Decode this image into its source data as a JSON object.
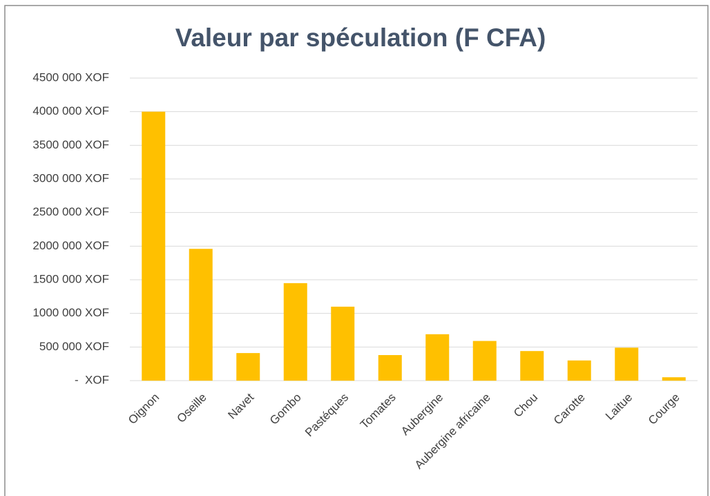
{
  "chart_data": {
    "type": "bar",
    "title": "Valeur par spéculation (F CFA)",
    "categories": [
      "Oignon",
      "Oseille",
      "Navet",
      "Gombo",
      "Pastéques",
      "Tomates",
      "Aubergine",
      "Aubergine africaine",
      "Chou",
      "Carotte",
      "Laitue",
      "Courge"
    ],
    "values": [
      4000000,
      1960000,
      410000,
      1450000,
      1100000,
      380000,
      690000,
      590000,
      440000,
      300000,
      490000,
      50000
    ],
    "color": "#ffc000",
    "ylim": [
      0,
      4500000
    ],
    "yticks": [
      {
        "value": 0,
        "label": "-  XOF"
      },
      {
        "value": 500000,
        "label": "500 000 XOF"
      },
      {
        "value": 1000000,
        "label": "1000 000 XOF"
      },
      {
        "value": 1500000,
        "label": "1500 000 XOF"
      },
      {
        "value": 2000000,
        "label": "2000 000 XOF"
      },
      {
        "value": 2500000,
        "label": "2500 000 XOF"
      },
      {
        "value": 3000000,
        "label": "3000 000 XOF"
      },
      {
        "value": 3500000,
        "label": "3500 000 XOF"
      },
      {
        "value": 4000000,
        "label": "4000 000 XOF"
      },
      {
        "value": 4500000,
        "label": "4500 000 XOF"
      }
    ],
    "grid": true
  }
}
